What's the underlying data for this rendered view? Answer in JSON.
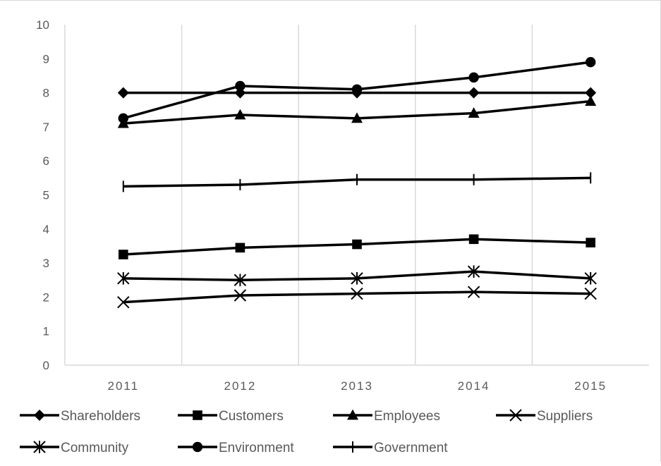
{
  "chart_data": {
    "type": "line",
    "title": "",
    "xlabel": "",
    "ylabel": "",
    "categories": [
      "2011",
      "2012",
      "2013",
      "2014",
      "2015"
    ],
    "ylim": [
      0,
      10
    ],
    "y_ticks": [
      "0",
      "1",
      "2",
      "3",
      "4",
      "5",
      "6",
      "7",
      "8",
      "9",
      "10"
    ],
    "grid": "vertical",
    "legend_position": "bottom",
    "line_color": "#000000",
    "series": [
      {
        "name": "Shareholders",
        "marker": "diamond",
        "values": [
          8.0,
          8.0,
          8.0,
          8.0,
          8.0
        ]
      },
      {
        "name": "Customers",
        "marker": "square",
        "values": [
          3.25,
          3.45,
          3.55,
          3.7,
          3.6
        ]
      },
      {
        "name": "Employees",
        "marker": "triangle",
        "values": [
          7.1,
          7.35,
          7.25,
          7.4,
          7.75
        ]
      },
      {
        "name": "Suppliers",
        "marker": "x",
        "values": [
          1.85,
          2.05,
          2.1,
          2.15,
          2.1
        ]
      },
      {
        "name": "Community",
        "marker": "asterisk",
        "values": [
          2.55,
          2.5,
          2.55,
          2.75,
          2.55
        ]
      },
      {
        "name": "Environment",
        "marker": "circle",
        "values": [
          7.25,
          8.2,
          8.1,
          8.45,
          8.9
        ]
      },
      {
        "name": "Government",
        "marker": "plus",
        "values": [
          5.25,
          5.3,
          5.45,
          5.45,
          5.5
        ]
      }
    ]
  }
}
